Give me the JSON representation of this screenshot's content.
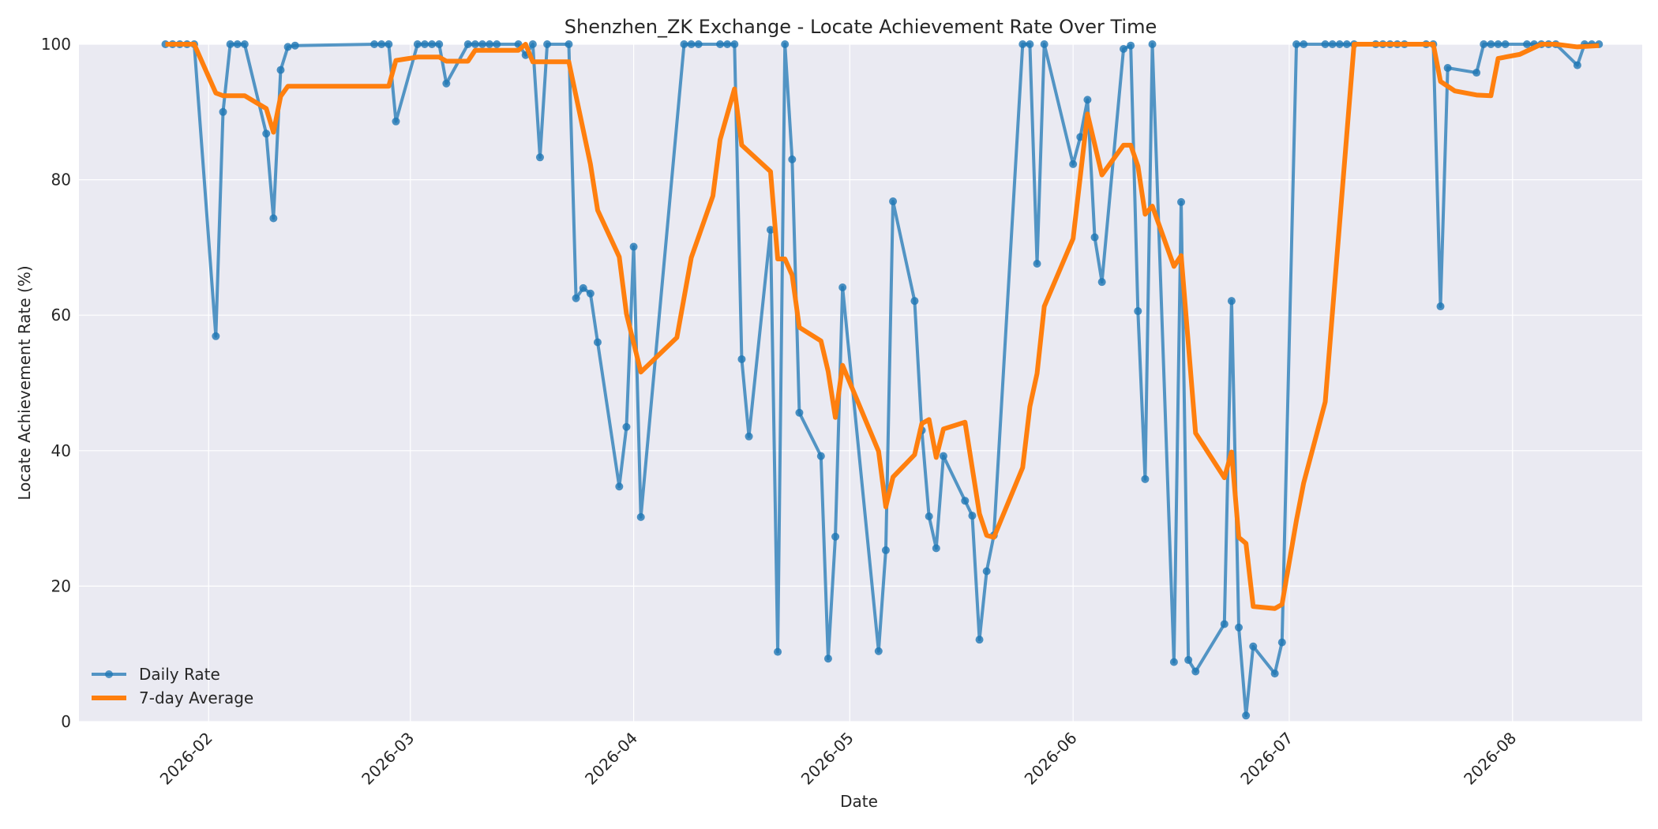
{
  "chart_data": {
    "type": "line",
    "title": "Shenzhen_ZK Exchange - Locate Achievement Rate Over Time",
    "xlabel": "Date",
    "ylabel": "Locate Achievement Rate (%)",
    "x_ticks": [
      "2026-02-01",
      "2026-03-01",
      "2026-04-01",
      "2026-05-01",
      "2026-06-01",
      "2026-07-01",
      "2026-08-01"
    ],
    "x_tick_labels": [
      "2026-02",
      "2026-03",
      "2026-04",
      "2026-05",
      "2026-06",
      "2026-07",
      "2026-08"
    ],
    "xlim": [
      "2026-01-14",
      "2026-08-19"
    ],
    "ylim": [
      0,
      100
    ],
    "y_ticks": [
      0,
      20,
      40,
      60,
      80,
      100
    ],
    "grid": true,
    "legend_position": "lower-left",
    "series": [
      {
        "name": "Daily Rate",
        "color": "#1f77b4",
        "marker": "circle",
        "points": [
          [
            "2026-01-26",
            100
          ],
          [
            "2026-01-27",
            100
          ],
          [
            "2026-01-28",
            100
          ],
          [
            "2026-01-29",
            100
          ],
          [
            "2026-01-30",
            100
          ],
          [
            "2026-02-02",
            56.9
          ],
          [
            "2026-02-03",
            90
          ],
          [
            "2026-02-04",
            100
          ],
          [
            "2026-02-05",
            100
          ],
          [
            "2026-02-06",
            100
          ],
          [
            "2026-02-09",
            86.8
          ],
          [
            "2026-02-10",
            74.3
          ],
          [
            "2026-02-11",
            96.2
          ],
          [
            "2026-02-12",
            99.6
          ],
          [
            "2026-02-13",
            99.8
          ],
          [
            "2026-02-24",
            100
          ],
          [
            "2026-02-25",
            100
          ],
          [
            "2026-02-26",
            100
          ],
          [
            "2026-02-27",
            88.6
          ],
          [
            "2026-03-02",
            100
          ],
          [
            "2026-03-03",
            100
          ],
          [
            "2026-03-04",
            100
          ],
          [
            "2026-03-05",
            100
          ],
          [
            "2026-03-06",
            94.2
          ],
          [
            "2026-03-09",
            100
          ],
          [
            "2026-03-10",
            100
          ],
          [
            "2026-03-11",
            100
          ],
          [
            "2026-03-12",
            100
          ],
          [
            "2026-03-13",
            100
          ],
          [
            "2026-03-16",
            100
          ],
          [
            "2026-03-17",
            98.4
          ],
          [
            "2026-03-18",
            100
          ],
          [
            "2026-03-19",
            83.3
          ],
          [
            "2026-03-20",
            100
          ],
          [
            "2026-03-23",
            100
          ],
          [
            "2026-03-24",
            62.5
          ],
          [
            "2026-03-25",
            64
          ],
          [
            "2026-03-26",
            63.2
          ],
          [
            "2026-03-27",
            56
          ],
          [
            "2026-03-30",
            34.7
          ],
          [
            "2026-03-31",
            43.5
          ],
          [
            "2026-04-01",
            70.1
          ],
          [
            "2026-04-02",
            30.2
          ],
          [
            "2026-04-08",
            100
          ],
          [
            "2026-04-09",
            100
          ],
          [
            "2026-04-10",
            100
          ],
          [
            "2026-04-13",
            100
          ],
          [
            "2026-04-14",
            100
          ],
          [
            "2026-04-15",
            100
          ],
          [
            "2026-04-16",
            53.5
          ],
          [
            "2026-04-17",
            42.1
          ],
          [
            "2026-04-20",
            72.6
          ],
          [
            "2026-04-21",
            10.3
          ],
          [
            "2026-04-22",
            100
          ],
          [
            "2026-04-23",
            83
          ],
          [
            "2026-04-24",
            45.6
          ],
          [
            "2026-04-27",
            39.2
          ],
          [
            "2026-04-28",
            9.3
          ],
          [
            "2026-04-29",
            27.3
          ],
          [
            "2026-04-30",
            64.1
          ],
          [
            "2026-05-05",
            10.4
          ],
          [
            "2026-05-06",
            25.3
          ],
          [
            "2026-05-07",
            76.8
          ],
          [
            "2026-05-10",
            62.1
          ],
          [
            "2026-05-11",
            43
          ],
          [
            "2026-05-12",
            30.3
          ],
          [
            "2026-05-13",
            25.6
          ],
          [
            "2026-05-14",
            39.2
          ],
          [
            "2026-05-17",
            32.6
          ],
          [
            "2026-05-18",
            30.4
          ],
          [
            "2026-05-19",
            12.1
          ],
          [
            "2026-05-20",
            22.2
          ],
          [
            "2026-05-21",
            27.5
          ],
          [
            "2026-05-25",
            100
          ],
          [
            "2026-05-26",
            100
          ],
          [
            "2026-05-27",
            67.6
          ],
          [
            "2026-05-28",
            100
          ],
          [
            "2026-06-01",
            82.3
          ],
          [
            "2026-06-02",
            86.3
          ],
          [
            "2026-06-03",
            91.8
          ],
          [
            "2026-06-04",
            71.5
          ],
          [
            "2026-06-05",
            64.9
          ],
          [
            "2026-06-08",
            99.3
          ],
          [
            "2026-06-09",
            99.8
          ],
          [
            "2026-06-10",
            60.6
          ],
          [
            "2026-06-11",
            35.8
          ],
          [
            "2026-06-12",
            100
          ],
          [
            "2026-06-15",
            8.8
          ],
          [
            "2026-06-16",
            76.7
          ],
          [
            "2026-06-17",
            9.1
          ],
          [
            "2026-06-18",
            7.4
          ],
          [
            "2026-06-22",
            14.4
          ],
          [
            "2026-06-23",
            62.1
          ],
          [
            "2026-06-24",
            13.9
          ],
          [
            "2026-06-25",
            0.9
          ],
          [
            "2026-06-26",
            11.1
          ],
          [
            "2026-06-29",
            7.1
          ],
          [
            "2026-06-30",
            11.7
          ],
          [
            "2026-07-02",
            100
          ],
          [
            "2026-07-03",
            100
          ],
          [
            "2026-07-06",
            100
          ],
          [
            "2026-07-07",
            100
          ],
          [
            "2026-07-08",
            100
          ],
          [
            "2026-07-09",
            100
          ],
          [
            "2026-07-10",
            100
          ],
          [
            "2026-07-13",
            100
          ],
          [
            "2026-07-14",
            100
          ],
          [
            "2026-07-15",
            100
          ],
          [
            "2026-07-16",
            100
          ],
          [
            "2026-07-17",
            100
          ],
          [
            "2026-07-20",
            100
          ],
          [
            "2026-07-21",
            100
          ],
          [
            "2026-07-22",
            61.3
          ],
          [
            "2026-07-23",
            96.5
          ],
          [
            "2026-07-27",
            95.8
          ],
          [
            "2026-07-28",
            100
          ],
          [
            "2026-07-29",
            100
          ],
          [
            "2026-07-30",
            100
          ],
          [
            "2026-07-31",
            100
          ],
          [
            "2026-08-03",
            100
          ],
          [
            "2026-08-04",
            100
          ],
          [
            "2026-08-05",
            100
          ],
          [
            "2026-08-06",
            100
          ],
          [
            "2026-08-07",
            100
          ],
          [
            "2026-08-10",
            96.9
          ],
          [
            "2026-08-11",
            100
          ],
          [
            "2026-08-12",
            100
          ],
          [
            "2026-08-13",
            100
          ]
        ]
      },
      {
        "name": "7-day Average",
        "color": "#ff7f0e",
        "marker": "none",
        "points": [
          [
            "2026-01-26",
            100
          ],
          [
            "2026-01-30",
            100
          ],
          [
            "2026-02-02",
            92.8
          ],
          [
            "2026-02-03",
            92.4
          ],
          [
            "2026-02-06",
            92.4
          ],
          [
            "2026-02-09",
            90.5
          ],
          [
            "2026-02-10",
            87
          ],
          [
            "2026-02-11",
            92.3
          ],
          [
            "2026-02-12",
            93.8
          ],
          [
            "2026-02-13",
            93.8
          ],
          [
            "2026-02-26",
            93.8
          ],
          [
            "2026-02-27",
            97.6
          ],
          [
            "2026-03-02",
            98.1
          ],
          [
            "2026-03-05",
            98.1
          ],
          [
            "2026-03-06",
            97.5
          ],
          [
            "2026-03-09",
            97.5
          ],
          [
            "2026-03-10",
            99.1
          ],
          [
            "2026-03-16",
            99.1
          ],
          [
            "2026-03-17",
            100
          ],
          [
            "2026-03-18",
            97.4
          ],
          [
            "2026-03-23",
            97.4
          ],
          [
            "2026-03-26",
            82.3
          ],
          [
            "2026-03-27",
            75.5
          ],
          [
            "2026-03-30",
            68.6
          ],
          [
            "2026-03-31",
            60.2
          ],
          [
            "2026-04-02",
            51.6
          ],
          [
            "2026-04-07",
            56.7
          ],
          [
            "2026-04-09",
            68.5
          ],
          [
            "2026-04-12",
            77.6
          ],
          [
            "2026-04-13",
            85.9
          ],
          [
            "2026-04-15",
            93.4
          ],
          [
            "2026-04-16",
            85.1
          ],
          [
            "2026-04-20",
            81.2
          ],
          [
            "2026-04-21",
            68.3
          ],
          [
            "2026-04-22",
            68.3
          ],
          [
            "2026-04-23",
            65.9
          ],
          [
            "2026-04-24",
            58.2
          ],
          [
            "2026-04-27",
            56.2
          ],
          [
            "2026-04-28",
            51.7
          ],
          [
            "2026-04-29",
            44.9
          ],
          [
            "2026-04-30",
            52.6
          ],
          [
            "2026-05-05",
            39.9
          ],
          [
            "2026-05-06",
            31.7
          ],
          [
            "2026-05-07",
            36.1
          ],
          [
            "2026-05-10",
            39.4
          ],
          [
            "2026-05-11",
            44
          ],
          [
            "2026-05-12",
            44.6
          ],
          [
            "2026-05-13",
            39
          ],
          [
            "2026-05-14",
            43.2
          ],
          [
            "2026-05-17",
            44.2
          ],
          [
            "2026-05-19",
            30.7
          ],
          [
            "2026-05-20",
            27.5
          ],
          [
            "2026-05-21",
            27.2
          ],
          [
            "2026-05-25",
            37.5
          ],
          [
            "2026-05-26",
            46.5
          ],
          [
            "2026-05-27",
            51.4
          ],
          [
            "2026-05-28",
            61.3
          ],
          [
            "2026-06-01",
            71.3
          ],
          [
            "2026-06-03",
            89.7
          ],
          [
            "2026-06-05",
            80.7
          ],
          [
            "2026-06-08",
            85.1
          ],
          [
            "2026-06-09",
            85.1
          ],
          [
            "2026-06-10",
            82
          ],
          [
            "2026-06-11",
            74.9
          ],
          [
            "2026-06-12",
            76.1
          ],
          [
            "2026-06-15",
            67.2
          ],
          [
            "2026-06-16",
            68.8
          ],
          [
            "2026-06-18",
            42.6
          ],
          [
            "2026-06-22",
            36
          ],
          [
            "2026-06-23",
            39.8
          ],
          [
            "2026-06-24",
            27.2
          ],
          [
            "2026-06-25",
            26.3
          ],
          [
            "2026-06-26",
            17
          ],
          [
            "2026-06-29",
            16.7
          ],
          [
            "2026-06-30",
            17.3
          ],
          [
            "2026-07-02",
            29.7
          ],
          [
            "2026-07-03",
            35.2
          ],
          [
            "2026-07-06",
            47.2
          ],
          [
            "2026-07-10",
            100
          ],
          [
            "2026-07-21",
            100
          ],
          [
            "2026-07-22",
            94.5
          ],
          [
            "2026-07-24",
            93.1
          ],
          [
            "2026-07-27",
            92.5
          ],
          [
            "2026-07-29",
            92.4
          ],
          [
            "2026-07-30",
            97.9
          ],
          [
            "2026-08-02",
            98.5
          ],
          [
            "2026-08-05",
            100
          ],
          [
            "2026-08-07",
            100
          ],
          [
            "2026-08-10",
            99.6
          ],
          [
            "2026-08-13",
            99.8
          ]
        ]
      }
    ]
  }
}
